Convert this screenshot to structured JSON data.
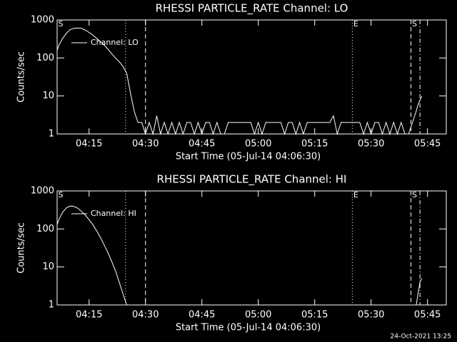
{
  "chart_data": [
    {
      "type": "line",
      "title": "RHESSI PARTICLE_RATE Channel: LO",
      "xlabel": "Start Time (05-Jul-14 04:06:30)",
      "ylabel": "Counts/sec",
      "log_y": true,
      "color": "#ffffff",
      "xlim": [
        246.5,
        350
      ],
      "xticks": [
        {
          "value": 255,
          "label": "04:15"
        },
        {
          "value": 270,
          "label": "04:30"
        },
        {
          "value": 285,
          "label": "04:45"
        },
        {
          "value": 300,
          "label": "05:00"
        },
        {
          "value": 315,
          "label": "05:15"
        },
        {
          "value": 330,
          "label": "05:30"
        },
        {
          "value": 345,
          "label": "05:45"
        }
      ],
      "ylim": [
        1,
        1000
      ],
      "yticks": [
        1,
        10,
        100,
        1000
      ],
      "vlines": [
        {
          "x": 264.7,
          "style": "dotted"
        },
        {
          "x": 270,
          "style": "dashed"
        },
        {
          "x": 325,
          "style": "dotted"
        },
        {
          "x": 340.6,
          "style": "dashed"
        },
        {
          "x": 343,
          "style": "dashdot"
        }
      ],
      "annotations": [
        {
          "text": "S",
          "x": 246.5
        },
        {
          "text": "E",
          "x": 325
        },
        {
          "text": "S",
          "x": 340.6
        }
      ],
      "series": [
        {
          "name": "Channel: LO",
          "x": [
            246.5,
            247,
            248,
            249,
            250,
            251,
            252,
            253,
            254,
            255,
            256,
            257,
            258,
            259,
            260,
            261,
            262,
            263,
            264,
            265,
            266,
            267,
            268,
            269,
            270,
            271,
            272,
            273,
            274,
            275,
            276,
            277,
            278,
            279,
            280,
            281,
            282,
            283,
            284,
            285,
            286,
            287,
            288,
            289,
            290,
            291,
            292,
            293,
            294,
            295,
            296,
            297,
            298,
            299,
            300,
            301,
            302,
            303,
            304,
            305,
            306,
            307,
            308,
            309,
            310,
            311,
            312,
            313,
            314,
            315,
            316,
            317,
            318,
            319,
            320,
            321,
            322,
            323,
            324,
            325,
            326,
            327,
            328,
            329,
            330,
            331,
            332,
            333,
            334,
            335,
            336,
            337,
            338,
            339,
            340,
            341,
            342,
            342.5,
            343.5
          ],
          "values": [
            160,
            220,
            330,
            450,
            560,
            600,
            610,
            600,
            540,
            470,
            400,
            330,
            270,
            220,
            170,
            130,
            100,
            80,
            60,
            40,
            12,
            4,
            2,
            2,
            1,
            2,
            1,
            3,
            1,
            2,
            1,
            2,
            1,
            2,
            1,
            2,
            2,
            1,
            2,
            1,
            2,
            2,
            1,
            2,
            1,
            1,
            2,
            2,
            2,
            2,
            2,
            2,
            2,
            1,
            2,
            1,
            2,
            2,
            2,
            2,
            2,
            1,
            2,
            2,
            1,
            2,
            1,
            2,
            2,
            2,
            2,
            2,
            2,
            2,
            3,
            1,
            2,
            2,
            2,
            2,
            2,
            2,
            1,
            2,
            1,
            2,
            2,
            1,
            2,
            1,
            2,
            1,
            2,
            1,
            1,
            2,
            4,
            6,
            10
          ]
        }
      ]
    },
    {
      "type": "line",
      "title": "RHESSI PARTICLE_RATE Channel: HI",
      "xlabel": "Start Time (05-Jul-14 04:06:30)",
      "ylabel": "Counts/sec",
      "log_y": true,
      "color": "#ffffff",
      "xlim": [
        246.5,
        350
      ],
      "xticks": [
        {
          "value": 255,
          "label": "04:15"
        },
        {
          "value": 270,
          "label": "04:30"
        },
        {
          "value": 285,
          "label": "04:45"
        },
        {
          "value": 300,
          "label": "05:00"
        },
        {
          "value": 315,
          "label": "05:15"
        },
        {
          "value": 330,
          "label": "05:30"
        },
        {
          "value": 345,
          "label": "05:45"
        }
      ],
      "ylim": [
        1,
        1000
      ],
      "yticks": [
        1,
        10,
        100,
        1000
      ],
      "vlines": [
        {
          "x": 264.7,
          "style": "dotted"
        },
        {
          "x": 270,
          "style": "dashed"
        },
        {
          "x": 325,
          "style": "dotted"
        },
        {
          "x": 340.6,
          "style": "dashed"
        },
        {
          "x": 343,
          "style": "dashdot"
        }
      ],
      "annotations": [
        {
          "text": "S",
          "x": 246.5
        },
        {
          "text": "E",
          "x": 325
        },
        {
          "text": "S",
          "x": 340.6
        }
      ],
      "series": [
        {
          "name": "Channel: HI",
          "x": [
            246.5,
            247,
            248,
            249,
            250,
            251,
            252,
            253,
            254,
            255,
            256,
            257,
            258,
            259,
            260,
            261,
            262,
            263,
            264,
            265,
            300,
            342,
            342.5,
            343,
            343.5
          ],
          "values": [
            130,
            180,
            280,
            360,
            400,
            390,
            350,
            290,
            230,
            175,
            130,
            90,
            60,
            38,
            24,
            14,
            8,
            4,
            2,
            1,
            null,
            1,
            2,
            4,
            5
          ]
        }
      ]
    }
  ],
  "footer": "24-Oct-2021 13:25"
}
